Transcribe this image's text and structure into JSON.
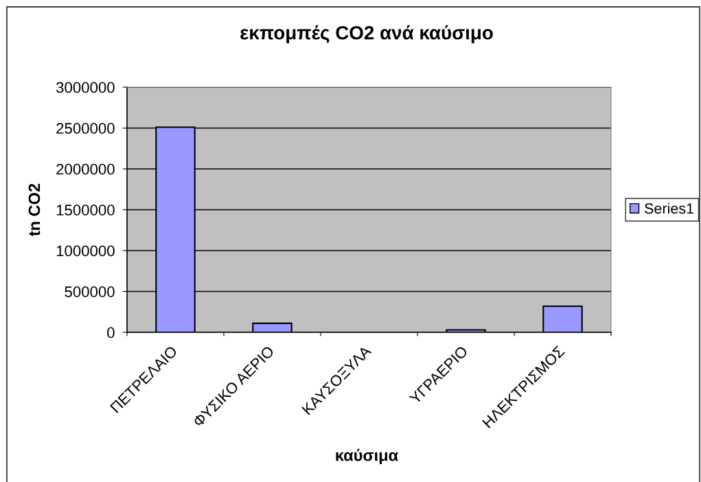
{
  "chart_data": {
    "type": "bar",
    "title": "εκπομπές CO2 ανά καύσιμο",
    "xlabel": "καύσιμα",
    "ylabel": "tn CO2",
    "categories": [
      "ΠΕΤΡΕΛΑΙΟ",
      "ΦΥΣΙΚΟ ΑΕΡΙΟ",
      "ΚΑΥΣΟΞΥΛΑ",
      "ΥΓΡΑΕΡΙΟ",
      "ΗΛΕΚΤΡΙΣΜΟΣ"
    ],
    "series": [
      {
        "name": "Series1",
        "color": "#9999ff",
        "values": [
          2510000,
          110000,
          null,
          30000,
          320000
        ]
      }
    ],
    "ylim": [
      0,
      3000000
    ],
    "yticks": [
      0,
      500000,
      1000000,
      1500000,
      2000000,
      2500000,
      3000000
    ],
    "grid": "y",
    "legend": "right"
  }
}
